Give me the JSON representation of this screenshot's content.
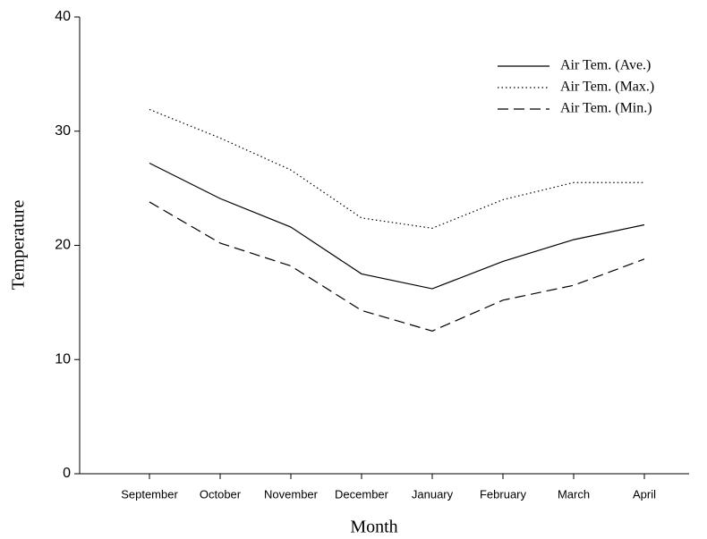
{
  "chart_data": {
    "type": "line",
    "x_label": "Month",
    "y_label": "Temperature",
    "categories": [
      "September",
      "October",
      "November",
      "December",
      "January",
      "February",
      "March",
      "April"
    ],
    "series": [
      {
        "name": "Air Tem. (Ave.)",
        "color": "#000000",
        "line_style": "solid",
        "values": [
          27.2,
          24.1,
          21.6,
          17.5,
          16.2,
          18.6,
          20.5,
          21.8
        ]
      },
      {
        "name": "Air Tem. (Max.)",
        "color": "#000000",
        "line_style": "dotted",
        "values": [
          31.9,
          29.4,
          26.6,
          22.4,
          21.5,
          24.0,
          25.5,
          25.5
        ]
      },
      {
        "name": "Air Tem. (Min.)",
        "color": "#000000",
        "line_style": "dashed",
        "values": [
          23.8,
          20.2,
          18.2,
          14.3,
          12.5,
          15.2,
          16.5,
          18.8
        ]
      }
    ],
    "ylim": [
      0,
      40
    ],
    "yticks": [
      0,
      10,
      20,
      30,
      40
    ],
    "grid": false,
    "legend": "upper right"
  }
}
